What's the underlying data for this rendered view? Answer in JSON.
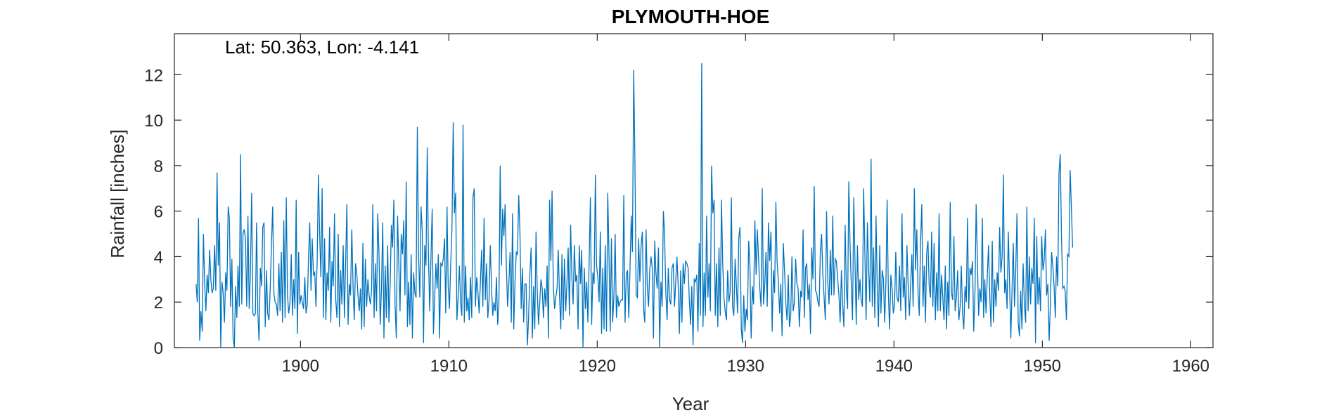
{
  "chart_data": {
    "type": "line",
    "title": "PLYMOUTH-HOE",
    "xlabel": "Year",
    "ylabel": "Rainfall [inches]",
    "annotation": "Lat: 50.363, Lon: -4.141",
    "xlim": [
      1891.5,
      1961.5
    ],
    "ylim": [
      0,
      13.8
    ],
    "xticks": [
      1900,
      1910,
      1920,
      1930,
      1940,
      1950,
      1960
    ],
    "yticks": [
      0,
      2,
      4,
      6,
      8,
      10,
      12
    ],
    "grid": false,
    "color": "#0072BD",
    "series": [
      {
        "x_start": 1892.958,
        "x_step": 0.08333,
        "values": [
          2.8,
          2.0,
          5.7,
          0.3,
          1.6,
          0.7,
          5.0,
          2.8,
          1.6,
          3.2,
          2.4,
          4.3,
          3.0,
          2.4,
          2.6,
          4.5,
          2.5,
          7.7,
          3.6,
          5.5,
          0.0,
          2.9,
          2.4,
          1.1,
          3.3,
          2.5,
          6.2,
          5.7,
          1.8,
          3.9,
          0.4,
          0.0,
          2.7,
          1.3,
          3.6,
          1.8,
          8.5,
          1.9,
          5.0,
          5.2,
          4.8,
          1.8,
          5.8,
          1.7,
          3.3,
          6.8,
          1.5,
          1.4,
          1.5,
          5.5,
          1.5,
          0.3,
          3.5,
          2.7,
          5.3,
          5.5,
          0.9,
          3.4,
          1.5,
          1.2,
          2.6,
          4.5,
          6.2,
          2.4,
          2.0,
          1.9,
          1.4,
          3.7,
          1.6,
          4.2,
          1.1,
          5.6,
          1.3,
          6.6,
          2.3,
          1.5,
          2.0,
          4.1,
          1.4,
          3.0,
          1.7,
          6.5,
          0.6,
          4.2,
          1.9,
          2.3,
          2.0,
          1.7,
          3.1,
          1.5,
          1.9,
          4.0,
          5.5,
          2.5,
          4.8,
          3.2,
          3.3,
          1.8,
          3.9,
          7.6,
          5.0,
          3.1,
          7.0,
          1.3,
          4.8,
          1.2,
          3.3,
          2.5,
          5.3,
          1.1,
          3.8,
          2.7,
          5.9,
          2.1,
          1.3,
          5.0,
          0.9,
          3.4,
          1.9,
          4.5,
          1.3,
          3.7,
          6.3,
          1.0,
          2.8,
          2.3,
          5.2,
          2.7,
          1.2,
          3.7,
          3.3,
          2.3,
          1.6,
          2.6,
          0.8,
          4.6,
          0.9,
          3.9,
          1.8,
          3.0,
          2.3,
          1.9,
          2.5,
          6.3,
          1.3,
          3.7,
          1.6,
          5.9,
          4.1,
          1.0,
          2.6,
          5.5,
          0.4,
          3.6,
          1.3,
          4.5,
          1.1,
          2.7,
          5.4,
          4.4,
          6.5,
          1.9,
          0.4,
          5.8,
          3.7,
          1.6,
          5.0,
          4.1,
          5.6,
          2.3,
          7.3,
          0.9,
          2.9,
          1.0,
          4.1,
          0.4,
          3.3,
          2.4,
          2.2,
          9.7,
          4.0,
          2.2,
          6.2,
          5.1,
          0.2,
          4.5,
          3.6,
          8.8,
          4.1,
          1.6,
          3.9,
          6.1,
          0.6,
          2.1,
          3.7,
          2.6,
          4.1,
          0.4,
          3.7,
          3.6,
          3.9,
          4.8,
          1.5,
          6.2,
          2.7,
          1.7,
          3.7,
          5.2,
          9.9,
          5.9,
          6.8,
          1.2,
          2.2,
          3.6,
          2.0,
          1.4,
          9.8,
          1.1,
          3.6,
          1.6,
          2.2,
          1.2,
          3.1,
          1.3,
          6.6,
          7.0,
          1.8,
          3.1,
          2.5,
          1.5,
          2.9,
          4.3,
          1.8,
          5.7,
          2.1,
          3.7,
          1.3,
          2.1,
          4.5,
          2.7,
          1.4,
          2.0,
          1.6,
          3.1,
          1.0,
          1.9,
          8.0,
          3.6,
          6.1,
          4.9,
          6.3,
          3.6,
          1.8,
          2.8,
          4.2,
          1.1,
          5.9,
          0.8,
          2.9,
          4.2,
          4.1,
          6.7,
          5.1,
          1.7,
          3.5,
          1.1,
          2.8,
          2.8,
          0.1,
          1.3,
          3.2,
          4.4,
          0.4,
          2.7,
          0.8,
          5.1,
          2.5,
          1.0,
          2.0,
          3.0,
          2.6,
          1.3,
          2.6,
          1.8,
          3.6,
          0.4,
          6.5,
          3.8,
          6.9,
          2.7,
          1.7,
          2.2,
          2.6,
          4.3,
          2.3,
          0.8,
          4.1,
          1.2,
          3.9,
          1.6,
          2.8,
          4.4,
          1.4,
          5.4,
          3.1,
          1.9,
          4.5,
          2.9,
          3.2,
          0.8,
          4.5,
          2.8,
          4.3,
          0.0,
          3.5,
          1.7,
          2.9,
          1.1,
          3.9,
          6.6,
          1.0,
          3.3,
          2.8,
          7.6,
          3.6,
          3.1,
          2.0,
          5.1,
          0.6,
          3.5,
          0.8,
          4.5,
          0.7,
          6.8,
          4.2,
          0.7,
          4.8,
          1.1,
          2.3,
          5.0,
          1.3,
          2.3,
          1.8,
          2.0,
          2.1,
          2.1,
          6.7,
          1.1,
          3.2,
          3.4,
          1.3,
          3.4,
          5.8,
          4.2,
          12.2,
          8.3,
          2.3,
          2.2,
          4.8,
          2.9,
          4.5,
          5.1,
          1.7,
          1.1,
          5.2,
          2.7,
          1.8,
          3.4,
          4.0,
          3.5,
          0.4,
          4.7,
          3.3,
          2.6,
          4.4,
          0.0,
          2.9,
          1.8,
          6.0,
          5.0,
          2.4,
          1.2,
          3.5,
          2.1,
          1.9,
          3.5,
          3.7,
          1.8,
          2.9,
          4.0,
          2.7,
          0.6,
          3.4,
          1.1,
          3.7,
          2.8,
          3.8,
          3.7,
          3.5,
          2.1,
          1.0,
          2.7,
          0.1,
          3.0,
          2.9,
          3.2,
          0.7,
          4.6,
          1.4,
          12.5,
          0.9,
          3.3,
          1.4,
          5.8,
          2.2,
          3.7,
          1.6,
          8.0,
          5.9,
          6.5,
          1.4,
          3.7,
          0.9,
          4.4,
          1.4,
          6.5,
          3.7,
          2.2,
          1.6,
          1.2,
          3.4,
          2.0,
          2.4,
          6.6,
          1.8,
          1.4,
          3.9,
          2.8,
          1.5,
          4.8,
          5.3,
          0.8,
          0.2,
          2.3,
          0.7,
          1.7,
          1.2,
          4.7,
          3.6,
          0.4,
          2.7,
          1.9,
          5.6,
          3.2,
          5.2,
          3.9,
          2.6,
          1.8,
          7.0,
          1.9,
          2.8,
          4.2,
          1.8,
          5.5,
          3.8,
          5.1,
          0.7,
          3.4,
          2.4,
          6.4,
          3.8,
          2.9,
          1.5,
          2.8,
          0.5,
          4.6,
          3.4,
          2.0,
          1.2,
          3.2,
          0.9,
          1.4,
          4.0,
          1.6,
          2.0,
          3.9,
          2.8,
          2.6,
          0.9,
          2.5,
          2.2,
          5.2,
          1.3,
          3.5,
          3.7,
          2.1,
          2.8,
          0.6,
          4.4,
          3.0,
          7.1,
          2.5,
          2.4,
          2.0,
          1.8,
          4.3,
          5.0,
          3.2,
          2.2,
          1.2,
          6.0,
          2.9,
          1.9,
          4.3,
          2.3,
          5.8,
          2.3,
          3.9,
          3.8,
          3.0,
          2.3,
          1.1,
          3.4,
          1.9,
          0.9,
          5.4,
          2.6,
          1.7,
          7.3,
          4.5,
          2.8,
          1.2,
          6.6,
          3.8,
          1.0,
          4.5,
          2.1,
          3.0,
          2.1,
          1.8,
          7.0,
          4.1,
          1.2,
          5.5,
          3.4,
          2.0,
          8.3,
          1.8,
          4.4,
          1.3,
          5.8,
          2.6,
          0.9,
          4.5,
          1.5,
          3.4,
          3.0,
          1.1,
          2.9,
          6.5,
          2.3,
          0.8,
          3.2,
          2.6,
          1.5,
          1.9,
          4.2,
          2.2,
          2.0,
          3.6,
          1.6,
          5.9,
          2.2,
          3.1,
          1.2,
          4.5,
          2.8,
          1.4,
          2.7,
          4.1,
          1.8,
          7.0,
          3.4,
          5.2,
          2.4,
          1.4,
          4.6,
          6.3,
          1.8,
          3.6,
          1.1,
          4.2,
          4.7,
          2.7,
          2.2,
          5.1,
          1.8,
          4.6,
          1.2,
          3.3,
          1.6,
          5.9,
          1.6,
          3.2,
          2.2,
          1.2,
          3.6,
          0.8,
          2.9,
          1.4,
          6.4,
          2.4,
          2.1,
          4.9,
          1.6,
          2.2,
          3.4,
          1.2,
          1.8,
          3.6,
          1.5,
          0.8,
          2.7,
          2.0,
          5.7,
          1.7,
          3.5,
          3.2,
          3.8,
          0.7,
          2.4,
          6.3,
          3.8,
          1.4,
          2.6,
          2.0,
          5.7,
          1.3,
          3.0,
          1.5,
          3.2,
          4.5,
          2.2,
          0.9,
          4.7,
          1.1,
          3.0,
          1.8,
          3.3,
          2.5,
          5.3,
          3.3,
          4.0,
          7.6,
          2.4,
          3.0,
          1.7,
          5.1,
          2.9,
          0.4,
          2.5,
          4.6,
          1.8,
          3.4,
          5.9,
          1.1,
          0.5,
          2.5,
          0.8,
          3.7,
          1.9,
          1.1,
          6.2,
          1.6,
          4.0,
          1.9,
          3.5,
          2.8,
          5.7,
          0.2,
          4.9,
          1.9,
          3.1,
          1.6,
          4.9,
          3.4,
          3.8,
          5.2,
          2.3,
          2.8,
          0.3,
          1.8,
          4.2,
          3.6,
          2.7,
          1.3,
          4.0,
          2.7,
          7.7,
          8.5,
          5.0,
          2.6,
          2.7,
          2.5,
          1.2,
          4.1,
          4.0,
          7.8,
          6.2,
          4.4
        ]
      }
    ]
  }
}
